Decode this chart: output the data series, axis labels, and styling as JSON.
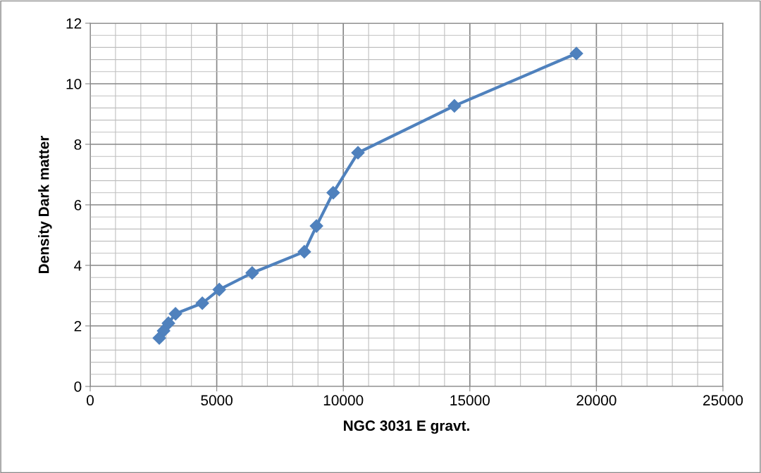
{
  "chart_data": {
    "type": "line",
    "xlabel": "NGC 3031 E gravt.",
    "ylabel": "Density Dark matter",
    "series": [
      {
        "color": "#4f81bd",
        "x": [
          2730,
          2900,
          3090,
          3370,
          4430,
          5100,
          6400,
          8460,
          8940,
          9600,
          10580,
          14390,
          19210
        ],
        "values": [
          1.6,
          1.84,
          2.09,
          2.4,
          2.75,
          3.2,
          3.75,
          4.45,
          5.3,
          6.4,
          7.72,
          9.27,
          11.0
        ]
      }
    ],
    "xlim": [
      0,
      25000
    ],
    "xticks": [
      0,
      5000,
      10000,
      15000,
      20000,
      25000
    ],
    "ylim": [
      0,
      12
    ],
    "yticks": [
      0,
      2,
      4,
      6,
      8,
      10,
      12
    ],
    "grid": true,
    "marker": "diamond",
    "line_style": "solid",
    "legend": false
  }
}
